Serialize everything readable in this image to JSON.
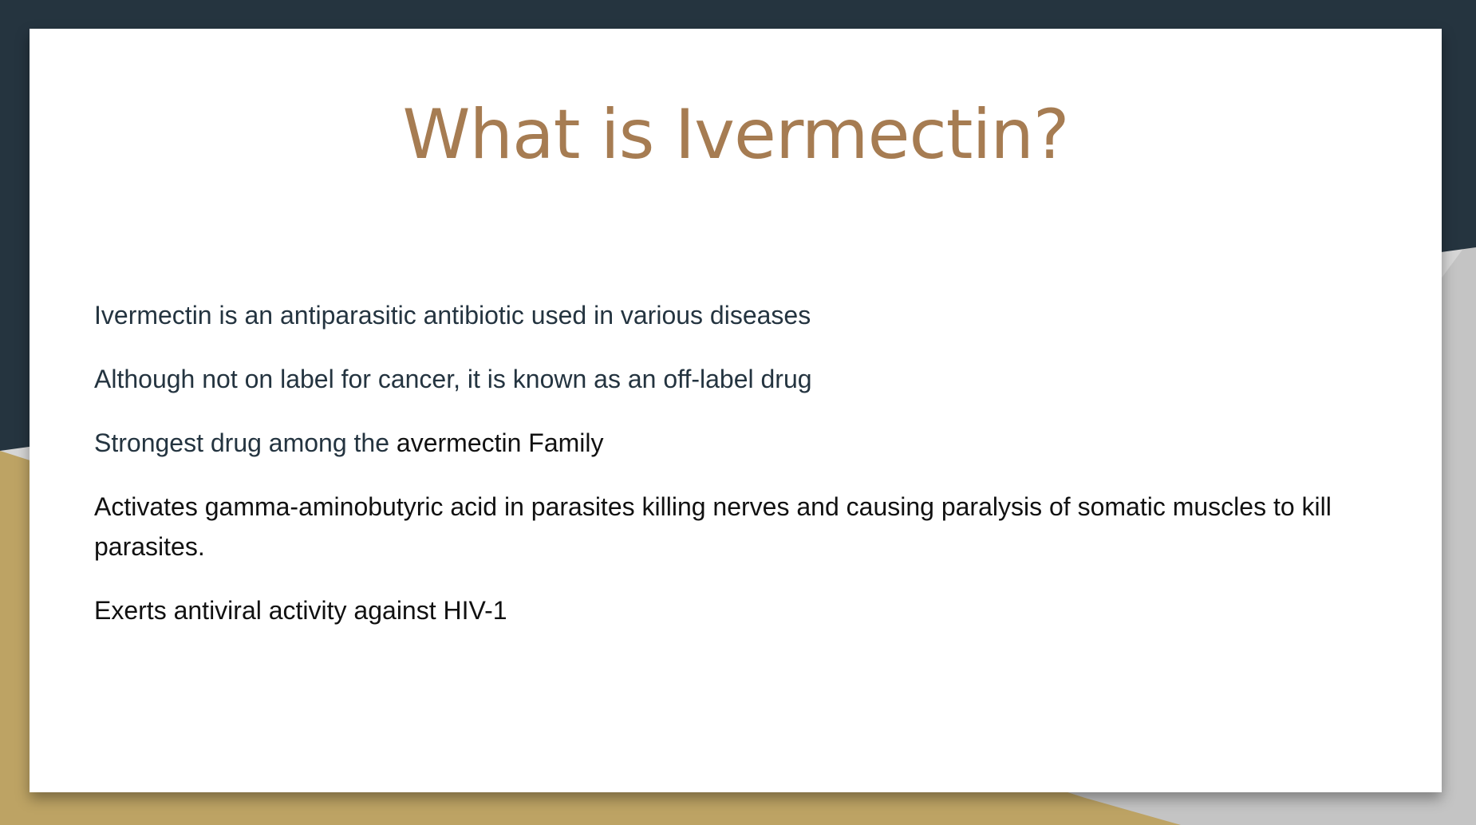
{
  "theme": {
    "navy": "#25343f",
    "gold": "#bda364",
    "grey": "#c9c9c9",
    "title_color": "#a67c52",
    "body_dark": "#243440",
    "body_black": "#111111"
  },
  "slide": {
    "title": "What is Ivermectin?",
    "points": [
      {
        "text": "Ivermectin is an antiparasitic antibiotic used in various diseases",
        "tone": "dark"
      },
      {
        "text": "Although not on label for cancer, it is known as an off-label drug",
        "tone": "dark"
      },
      {
        "part1": "Strongest drug among the ",
        "part2": "avermectin Family",
        "tone": "mixed"
      },
      {
        "text": "Activates gamma-aminobutyric acid in parasites killing nerves and causing paralysis of somatic muscles to kill parasites.",
        "tone": "black"
      },
      {
        "text": "Exerts antiviral activity against HIV-1",
        "tone": "black"
      }
    ]
  }
}
